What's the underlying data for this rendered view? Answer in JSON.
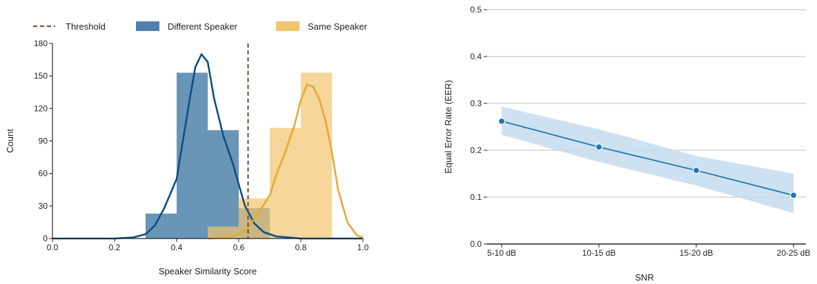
{
  "chart_data": [
    {
      "type": "histogram",
      "title": "",
      "xlabel": "Speaker Similarity Score",
      "ylabel": "Count",
      "xlim": [
        0.0,
        1.0
      ],
      "ylim": [
        0,
        180
      ],
      "xticks": [
        "0.0",
        "0.2",
        "0.4",
        "0.6",
        "0.8",
        "1.0"
      ],
      "yticks": [
        "0",
        "30",
        "60",
        "90",
        "120",
        "150",
        "180"
      ],
      "grid": false,
      "legend_position": "top",
      "threshold": {
        "name": "Threshold",
        "x": 0.63,
        "color": "#6b4a2e"
      },
      "series": [
        {
          "name": "Different Speaker",
          "color": "#4f82aa",
          "line_color": "#0d4d86",
          "bins": [
            [
              0.3,
              0.4,
              23
            ],
            [
              0.4,
              0.5,
              153
            ],
            [
              0.5,
              0.6,
              100
            ],
            [
              0.6,
              0.7,
              28
            ]
          ],
          "kde": [
            [
              0.0,
              0
            ],
            [
              0.2,
              0
            ],
            [
              0.26,
              1
            ],
            [
              0.3,
              4
            ],
            [
              0.33,
              12
            ],
            [
              0.36,
              28
            ],
            [
              0.4,
              55
            ],
            [
              0.42,
              90
            ],
            [
              0.44,
              125
            ],
            [
              0.46,
              158
            ],
            [
              0.48,
              170
            ],
            [
              0.5,
              163
            ],
            [
              0.52,
              130
            ],
            [
              0.55,
              95
            ],
            [
              0.58,
              70
            ],
            [
              0.6,
              50
            ],
            [
              0.62,
              30
            ],
            [
              0.65,
              14
            ],
            [
              0.68,
              6
            ],
            [
              0.72,
              2
            ],
            [
              0.8,
              0
            ],
            [
              1.0,
              0
            ]
          ]
        },
        {
          "name": "Same Speaker",
          "color": "#f2c46d",
          "line_color": "#e6a935",
          "bins": [
            [
              0.5,
              0.6,
              11
            ],
            [
              0.6,
              0.7,
              37
            ],
            [
              0.7,
              0.8,
              102
            ],
            [
              0.8,
              0.9,
              153
            ]
          ],
          "kde": [
            [
              0.5,
              0
            ],
            [
              0.56,
              1
            ],
            [
              0.6,
              4
            ],
            [
              0.63,
              10
            ],
            [
              0.66,
              22
            ],
            [
              0.7,
              40
            ],
            [
              0.72,
              58
            ],
            [
              0.75,
              80
            ],
            [
              0.78,
              105
            ],
            [
              0.8,
              128
            ],
            [
              0.82,
              142
            ],
            [
              0.84,
              140
            ],
            [
              0.86,
              128
            ],
            [
              0.88,
              108
            ],
            [
              0.9,
              80
            ],
            [
              0.92,
              45
            ],
            [
              0.95,
              15
            ],
            [
              0.98,
              3
            ],
            [
              1.0,
              1
            ]
          ]
        }
      ]
    },
    {
      "type": "line",
      "title": "",
      "xlabel": "SNR",
      "ylabel": "Equal Error Rate (EER)",
      "categories": [
        "5-10 dB",
        "10-15 dB",
        "15-20 dB",
        "20-25 dB"
      ],
      "ylim": [
        0.0,
        0.5
      ],
      "yticks": [
        "0.0",
        "0.1",
        "0.2",
        "0.3",
        "0.4",
        "0.5"
      ],
      "grid": true,
      "series": [
        {
          "color": "#1f77b4",
          "band_color": "#c6dcef",
          "values": [
            0.262,
            0.207,
            0.157,
            0.104
          ],
          "lower": [
            0.233,
            0.175,
            0.125,
            0.066
          ],
          "upper": [
            0.293,
            0.245,
            0.188,
            0.15
          ]
        }
      ]
    }
  ]
}
